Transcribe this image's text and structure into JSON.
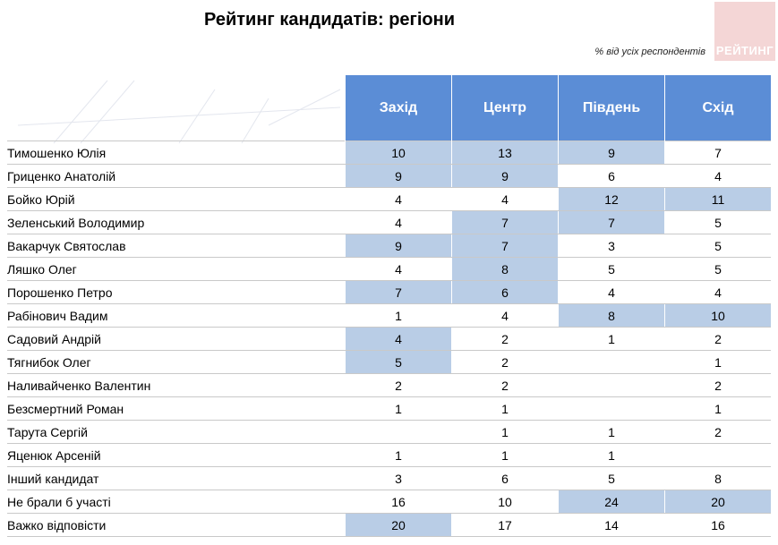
{
  "title": "Рейтинг кандидатів: регіони",
  "subtitle": "% від усіх респондентів",
  "logo": {
    "text": "РЕЙТИНГ",
    "color": "#f4d6d6"
  },
  "colors": {
    "header": "#5b8dd6",
    "highlight": "#b9cde6",
    "grid": "#c9c9c9"
  },
  "chart_data": {
    "type": "table",
    "columns": [
      "Захід",
      "Центр",
      "Південь",
      "Схід"
    ],
    "rows": [
      {
        "name": "Тимошенко Юлія",
        "values": [
          "10",
          "13",
          "9",
          "7"
        ],
        "highlight": [
          true,
          true,
          true,
          false
        ]
      },
      {
        "name": "Гриценко Анатолій",
        "values": [
          "9",
          "9",
          "6",
          "4"
        ],
        "highlight": [
          true,
          true,
          false,
          false
        ]
      },
      {
        "name": "Бойко Юрій",
        "values": [
          "4",
          "4",
          "12",
          "11"
        ],
        "highlight": [
          false,
          false,
          true,
          true
        ]
      },
      {
        "name": "Зеленський Володимир",
        "values": [
          "4",
          "7",
          "7",
          "5"
        ],
        "highlight": [
          false,
          true,
          true,
          false
        ]
      },
      {
        "name": "Вакарчук Святослав",
        "values": [
          "9",
          "7",
          "3",
          "5"
        ],
        "highlight": [
          true,
          true,
          false,
          false
        ]
      },
      {
        "name": "Ляшко Олег",
        "values": [
          "4",
          "8",
          "5",
          "5"
        ],
        "highlight": [
          false,
          true,
          false,
          false
        ]
      },
      {
        "name": "Порошенко Петро",
        "values": [
          "7",
          "6",
          "4",
          "4"
        ],
        "highlight": [
          true,
          true,
          false,
          false
        ]
      },
      {
        "name": "Рабінович Вадим",
        "values": [
          "1",
          "4",
          "8",
          "10"
        ],
        "highlight": [
          false,
          false,
          true,
          true
        ]
      },
      {
        "name": "Садовий Андрій",
        "values": [
          "4",
          "2",
          "1",
          "2"
        ],
        "highlight": [
          true,
          false,
          false,
          false
        ]
      },
      {
        "name": "Тягнибок Олег",
        "values": [
          "5",
          "2",
          "",
          "1"
        ],
        "highlight": [
          true,
          false,
          false,
          false
        ]
      },
      {
        "name": "Наливайченко Валентин",
        "values": [
          "2",
          "2",
          "",
          "2"
        ],
        "highlight": [
          false,
          false,
          false,
          false
        ]
      },
      {
        "name": "Безсмертний Роман",
        "values": [
          "1",
          "1",
          "",
          "1"
        ],
        "highlight": [
          false,
          false,
          false,
          false
        ]
      },
      {
        "name": "Тарута Сергій",
        "values": [
          "",
          "1",
          "1",
          "2"
        ],
        "highlight": [
          false,
          false,
          false,
          false
        ]
      },
      {
        "name": "Яценюк Арсеній",
        "values": [
          "1",
          "1",
          "1",
          ""
        ],
        "highlight": [
          false,
          false,
          false,
          false
        ]
      },
      {
        "name": "Інший кандидат",
        "values": [
          "3",
          "6",
          "5",
          "8"
        ],
        "highlight": [
          false,
          false,
          false,
          false
        ]
      },
      {
        "name": "Не брали б участі",
        "values": [
          "16",
          "10",
          "24",
          "20"
        ],
        "highlight": [
          false,
          false,
          true,
          true
        ]
      },
      {
        "name": "Важко відповісти",
        "values": [
          "20",
          "17",
          "14",
          "16"
        ],
        "highlight": [
          true,
          false,
          false,
          false
        ]
      }
    ]
  }
}
